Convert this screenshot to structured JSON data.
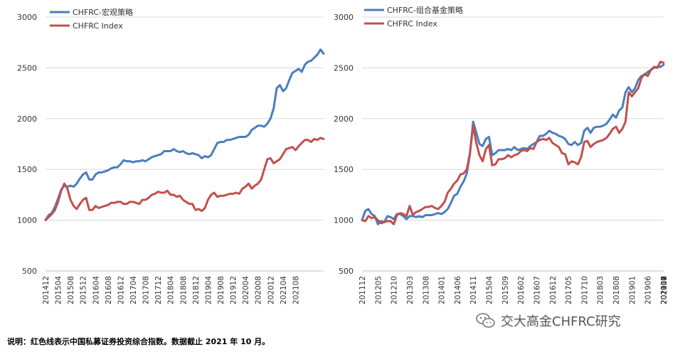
{
  "chart_data": [
    {
      "type": "line",
      "title": "",
      "xlabel": "",
      "ylabel": "",
      "ylim": [
        500,
        3000
      ],
      "yticks": [
        500,
        1000,
        1500,
        2000,
        2500,
        3000
      ],
      "x_start": "2014-12",
      "x_tick_labels": [
        "201412",
        "201504",
        "201508",
        "201512",
        "201604",
        "201608",
        "201612",
        "201704",
        "201708",
        "201712",
        "201804",
        "201808",
        "201812",
        "201904",
        "201908",
        "201912",
        "202004",
        "202008",
        "202012",
        "202104",
        "202108"
      ],
      "legend_position": "top-left",
      "grid": "horizontal",
      "series": [
        {
          "name": "CHFRC-宏观策略",
          "color": "#4a7ebf",
          "values": [
            1000,
            1050,
            1070,
            1130,
            1210,
            1300,
            1340,
            1330,
            1340,
            1330,
            1360,
            1410,
            1450,
            1470,
            1400,
            1400,
            1450,
            1470,
            1470,
            1480,
            1490,
            1510,
            1520,
            1520,
            1550,
            1590,
            1580,
            1580,
            1570,
            1580,
            1580,
            1590,
            1580,
            1600,
            1620,
            1630,
            1640,
            1650,
            1680,
            1680,
            1680,
            1700,
            1680,
            1670,
            1680,
            1660,
            1650,
            1660,
            1650,
            1640,
            1610,
            1630,
            1620,
            1640,
            1700,
            1760,
            1770,
            1770,
            1790,
            1790,
            1800,
            1810,
            1820,
            1820,
            1820,
            1840,
            1890,
            1910,
            1930,
            1930,
            1920,
            1950,
            2000,
            2100,
            2300,
            2330,
            2270,
            2300,
            2380,
            2450,
            2470,
            2490,
            2460,
            2530,
            2560,
            2570,
            2600,
            2630,
            2680,
            2640
          ]
        },
        {
          "name": "CHFRC Index",
          "color": "#c0504d",
          "values": [
            1000,
            1030,
            1060,
            1100,
            1180,
            1290,
            1360,
            1310,
            1200,
            1140,
            1110,
            1160,
            1200,
            1220,
            1100,
            1100,
            1140,
            1120,
            1130,
            1140,
            1150,
            1170,
            1170,
            1180,
            1180,
            1160,
            1160,
            1180,
            1180,
            1170,
            1160,
            1200,
            1200,
            1220,
            1250,
            1260,
            1280,
            1270,
            1270,
            1290,
            1250,
            1250,
            1230,
            1240,
            1200,
            1180,
            1160,
            1160,
            1100,
            1110,
            1090,
            1120,
            1200,
            1250,
            1270,
            1230,
            1240,
            1240,
            1250,
            1260,
            1260,
            1270,
            1260,
            1310,
            1330,
            1360,
            1310,
            1340,
            1360,
            1400,
            1500,
            1600,
            1610,
            1560,
            1580,
            1600,
            1650,
            1700,
            1710,
            1720,
            1690,
            1730,
            1760,
            1790,
            1790,
            1770,
            1800,
            1790,
            1810,
            1800
          ]
        }
      ]
    },
    {
      "type": "line",
      "title": "",
      "xlabel": "",
      "ylabel": "",
      "ylim": [
        500,
        3000
      ],
      "yticks": [
        500,
        1000,
        1500,
        2000,
        2500,
        3000
      ],
      "x_start": "2011-12",
      "x_tick_labels": [
        "201112",
        "201205",
        "201210",
        "201303",
        "201308",
        "201401",
        "201406",
        "201411",
        "201504",
        "201509",
        "201602",
        "201607",
        "201612",
        "201705",
        "201710",
        "201803",
        "201808",
        "201901",
        "201906",
        "201911",
        "202004",
        "202009",
        "202102",
        "202107"
      ],
      "legend_position": "top-left",
      "grid": "horizontal",
      "series": [
        {
          "name": "CHFRC-组合基金策略",
          "color": "#4a7ebf",
          "values": [
            1000,
            1090,
            1110,
            1060,
            1040,
            960,
            990,
            980,
            1040,
            1030,
            1010,
            1060,
            1060,
            1040,
            1010,
            1040,
            1040,
            1030,
            1040,
            1030,
            1050,
            1050,
            1050,
            1060,
            1070,
            1060,
            1080,
            1110,
            1170,
            1240,
            1260,
            1330,
            1380,
            1460,
            1650,
            1970,
            1860,
            1750,
            1730,
            1800,
            1820,
            1640,
            1660,
            1690,
            1690,
            1690,
            1700,
            1690,
            1720,
            1690,
            1700,
            1710,
            1700,
            1730,
            1750,
            1770,
            1830,
            1830,
            1850,
            1880,
            1860,
            1850,
            1830,
            1820,
            1800,
            1750,
            1740,
            1770,
            1740,
            1760,
            1880,
            1910,
            1860,
            1910,
            1920,
            1920,
            1930,
            1950,
            1990,
            2040,
            2010,
            2080,
            2110,
            2260,
            2310,
            2260,
            2300,
            2380,
            2420,
            2430,
            2460,
            2480,
            2500,
            2510,
            2510,
            2530
          ]
        },
        {
          "name": "CHFRC Index",
          "color": "#c0504d",
          "values": [
            1000,
            990,
            1040,
            1020,
            1030,
            1000,
            970,
            980,
            990,
            990,
            960,
            1050,
            1070,
            1060,
            1040,
            1140,
            1050,
            1080,
            1090,
            1110,
            1130,
            1130,
            1140,
            1120,
            1110,
            1140,
            1180,
            1270,
            1310,
            1360,
            1390,
            1450,
            1460,
            1500,
            1660,
            1930,
            1760,
            1640,
            1580,
            1700,
            1740,
            1540,
            1550,
            1600,
            1600,
            1610,
            1640,
            1620,
            1640,
            1650,
            1680,
            1690,
            1680,
            1710,
            1700,
            1770,
            1790,
            1800,
            1790,
            1810,
            1760,
            1740,
            1720,
            1660,
            1650,
            1550,
            1580,
            1570,
            1550,
            1620,
            1770,
            1780,
            1720,
            1750,
            1770,
            1780,
            1790,
            1810,
            1850,
            1900,
            1920,
            1860,
            1900,
            1970,
            2260,
            2220,
            2260,
            2300,
            2400,
            2440,
            2420,
            2480,
            2510,
            2500,
            2560,
            2550
          ]
        }
      ]
    }
  ],
  "caption": "说明：红色线表示中国私募证券投资综合指数。数据截止 2021 年 10 月。",
  "watermark": {
    "text": "交大高金CHFRC研究",
    "icon": "wechat-icon"
  }
}
